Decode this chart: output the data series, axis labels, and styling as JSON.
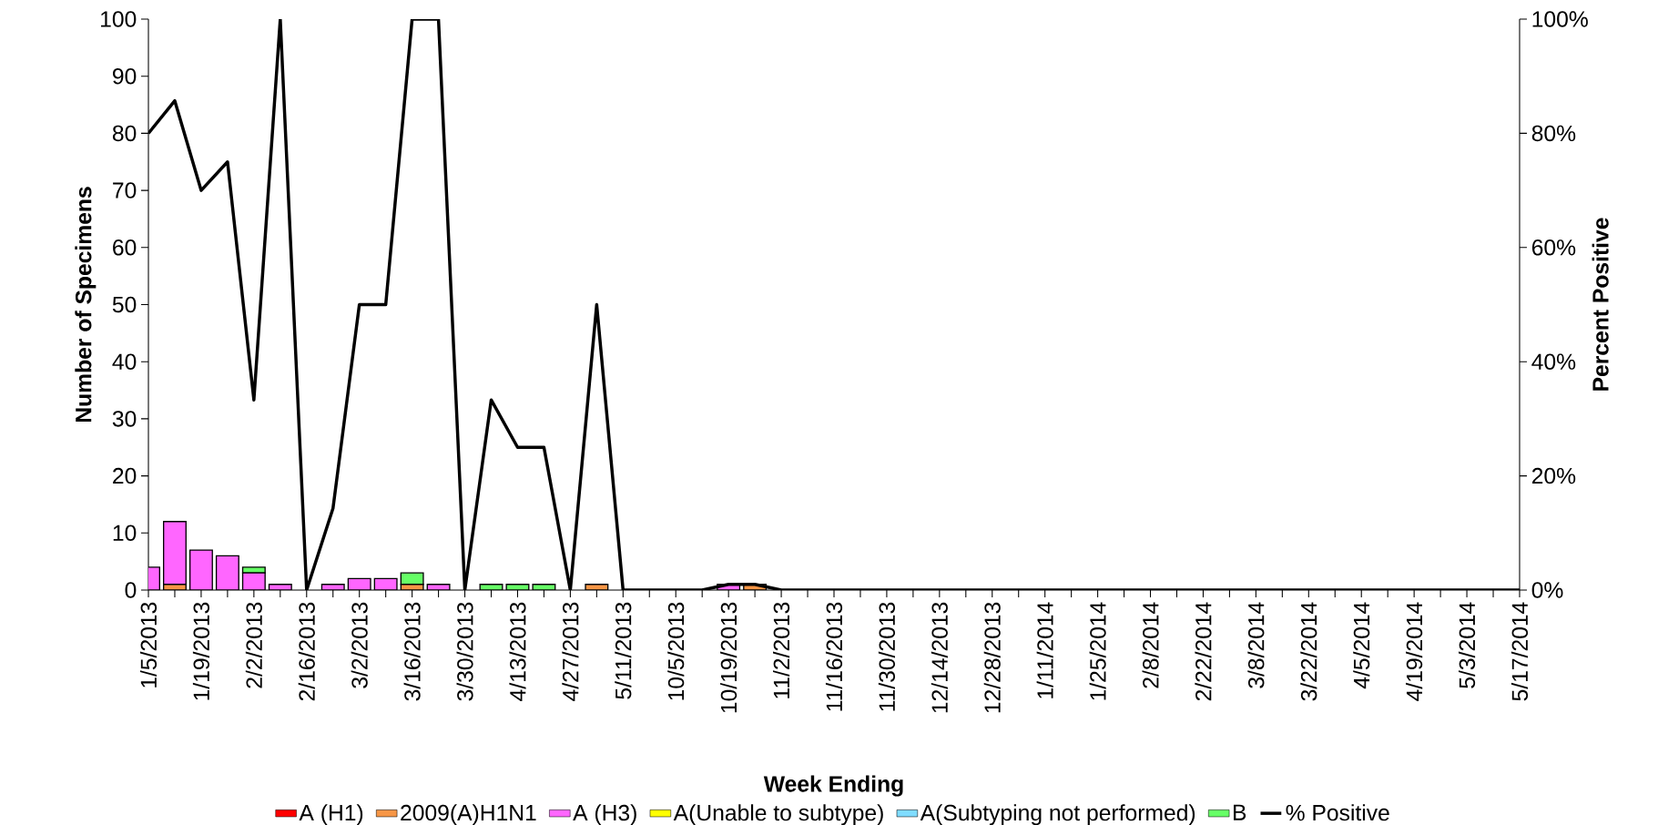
{
  "chart_data": {
    "type": "bar",
    "stacked": true,
    "xlabel": "Week Ending",
    "ylabel": "Number of Specimens",
    "y2label": "Percent Positive",
    "legend": "bottom",
    "categories": [
      "1/5/2013",
      null,
      "1/19/2013",
      null,
      "2/2/2013",
      null,
      "2/16/2013",
      null,
      "3/2/2013",
      null,
      "3/16/2013",
      null,
      "3/30/2013",
      null,
      "4/13/2013",
      null,
      "4/27/2013",
      null,
      "5/11/2013",
      null,
      "10/5/2013",
      null,
      "10/19/2013",
      null,
      "11/2/2013",
      null,
      "11/16/2013",
      null,
      "11/30/2013",
      null,
      "12/14/2013",
      null,
      "12/28/2013",
      null,
      "1/11/2014",
      null,
      "1/25/2014",
      null,
      "2/8/2014",
      null,
      "2/22/2014",
      null,
      "3/8/2014",
      null,
      "3/22/2014",
      null,
      "4/5/2014",
      null,
      "4/19/2014",
      null,
      "5/3/2014",
      null,
      "5/17/2014"
    ],
    "ylim": [
      0,
      100
    ],
    "yticks": [
      0,
      10,
      20,
      30,
      40,
      50,
      60,
      70,
      80,
      90,
      100
    ],
    "y2lim": [
      0,
      100
    ],
    "y2ticks": [
      {
        "value": 0,
        "label": "0%"
      },
      {
        "value": 20,
        "label": "20%"
      },
      {
        "value": 40,
        "label": "40%"
      },
      {
        "value": 60,
        "label": "60%"
      },
      {
        "value": 80,
        "label": "80%"
      },
      {
        "value": 100,
        "label": "100%"
      }
    ],
    "series": [
      {
        "name": "A (H1)",
        "color": "#ff0000",
        "values": [
          0,
          0,
          0,
          0,
          0,
          0,
          0,
          0,
          0,
          0,
          0,
          0,
          0,
          0,
          0,
          0,
          0,
          0,
          0,
          0,
          0,
          0,
          0,
          0,
          0,
          0,
          0,
          0,
          0,
          0,
          0,
          0,
          0,
          0,
          0,
          0,
          0,
          0,
          0,
          0,
          0,
          0,
          0,
          0,
          0,
          0,
          0,
          0,
          0,
          0,
          0,
          0,
          0
        ]
      },
      {
        "name": "2009(A)H1N1",
        "color": "#f79646",
        "values": [
          0,
          1,
          0,
          0,
          0,
          0,
          0,
          0,
          0,
          0,
          1,
          0,
          0,
          0,
          0,
          0,
          0,
          1,
          0,
          0,
          0,
          0,
          0,
          1,
          0,
          0,
          0,
          0,
          0,
          0,
          0,
          0,
          0,
          0,
          0,
          0,
          0,
          0,
          0,
          0,
          0,
          0,
          0,
          0,
          0,
          0,
          0,
          0,
          0,
          0,
          0,
          0,
          0
        ]
      },
      {
        "name": "A (H3)",
        "color": "#ff66ff",
        "values": [
          4,
          11,
          7,
          6,
          3,
          1,
          0,
          1,
          2,
          2,
          0,
          1,
          0,
          0,
          0,
          0,
          0,
          0,
          0,
          0,
          0,
          0,
          1,
          0,
          0,
          0,
          0,
          0,
          0,
          0,
          0,
          0,
          0,
          0,
          0,
          0,
          0,
          0,
          0,
          0,
          0,
          0,
          0,
          0,
          0,
          0,
          0,
          0,
          0,
          0,
          0,
          0,
          0
        ]
      },
      {
        "name": "A(Unable to subtype)",
        "color": "#ffff00",
        "values": [
          0,
          0,
          0,
          0,
          0,
          0,
          0,
          0,
          0,
          0,
          0,
          0,
          0,
          0,
          0,
          0,
          0,
          0,
          0,
          0,
          0,
          0,
          0,
          0,
          0,
          0,
          0,
          0,
          0,
          0,
          0,
          0,
          0,
          0,
          0,
          0,
          0,
          0,
          0,
          0,
          0,
          0,
          0,
          0,
          0,
          0,
          0,
          0,
          0,
          0,
          0,
          0,
          0
        ]
      },
      {
        "name": "A(Subtyping not performed)",
        "color": "#7fdcff",
        "values": [
          0,
          0,
          0,
          0,
          0,
          0,
          0,
          0,
          0,
          0,
          0,
          0,
          0,
          0,
          0,
          0,
          0,
          0,
          0,
          0,
          0,
          0,
          0,
          0,
          0,
          0,
          0,
          0,
          0,
          0,
          0,
          0,
          0,
          0,
          0,
          0,
          0,
          0,
          0,
          0,
          0,
          0,
          0,
          0,
          0,
          0,
          0,
          0,
          0,
          0,
          0,
          0,
          0
        ]
      },
      {
        "name": "B",
        "color": "#66ff66",
        "values": [
          0,
          0,
          0,
          0,
          1,
          0,
          0,
          0,
          0,
          0,
          2,
          0,
          0,
          1,
          1,
          1,
          0,
          0,
          0,
          0,
          0,
          0,
          0,
          0,
          0,
          0,
          0,
          0,
          0,
          0,
          0,
          0,
          0,
          0,
          0,
          0,
          0,
          0,
          0,
          0,
          0,
          0,
          0,
          0,
          0,
          0,
          0,
          0,
          0,
          0,
          0,
          0,
          0
        ]
      },
      {
        "name": "% Positive",
        "type": "line",
        "axis": "y2",
        "color": "#000000",
        "values": [
          80,
          85.7,
          70,
          75,
          33.3,
          100,
          0,
          14.3,
          50,
          50,
          100,
          100,
          0,
          33.3,
          25,
          25,
          0,
          50,
          0,
          0,
          0,
          0,
          1,
          1,
          0,
          0,
          0,
          0,
          0,
          0,
          0,
          0,
          0,
          0,
          0,
          0,
          0,
          0,
          0,
          0,
          0,
          0,
          0,
          0,
          0,
          0,
          0,
          0,
          0,
          0,
          0,
          0,
          0
        ]
      }
    ]
  }
}
